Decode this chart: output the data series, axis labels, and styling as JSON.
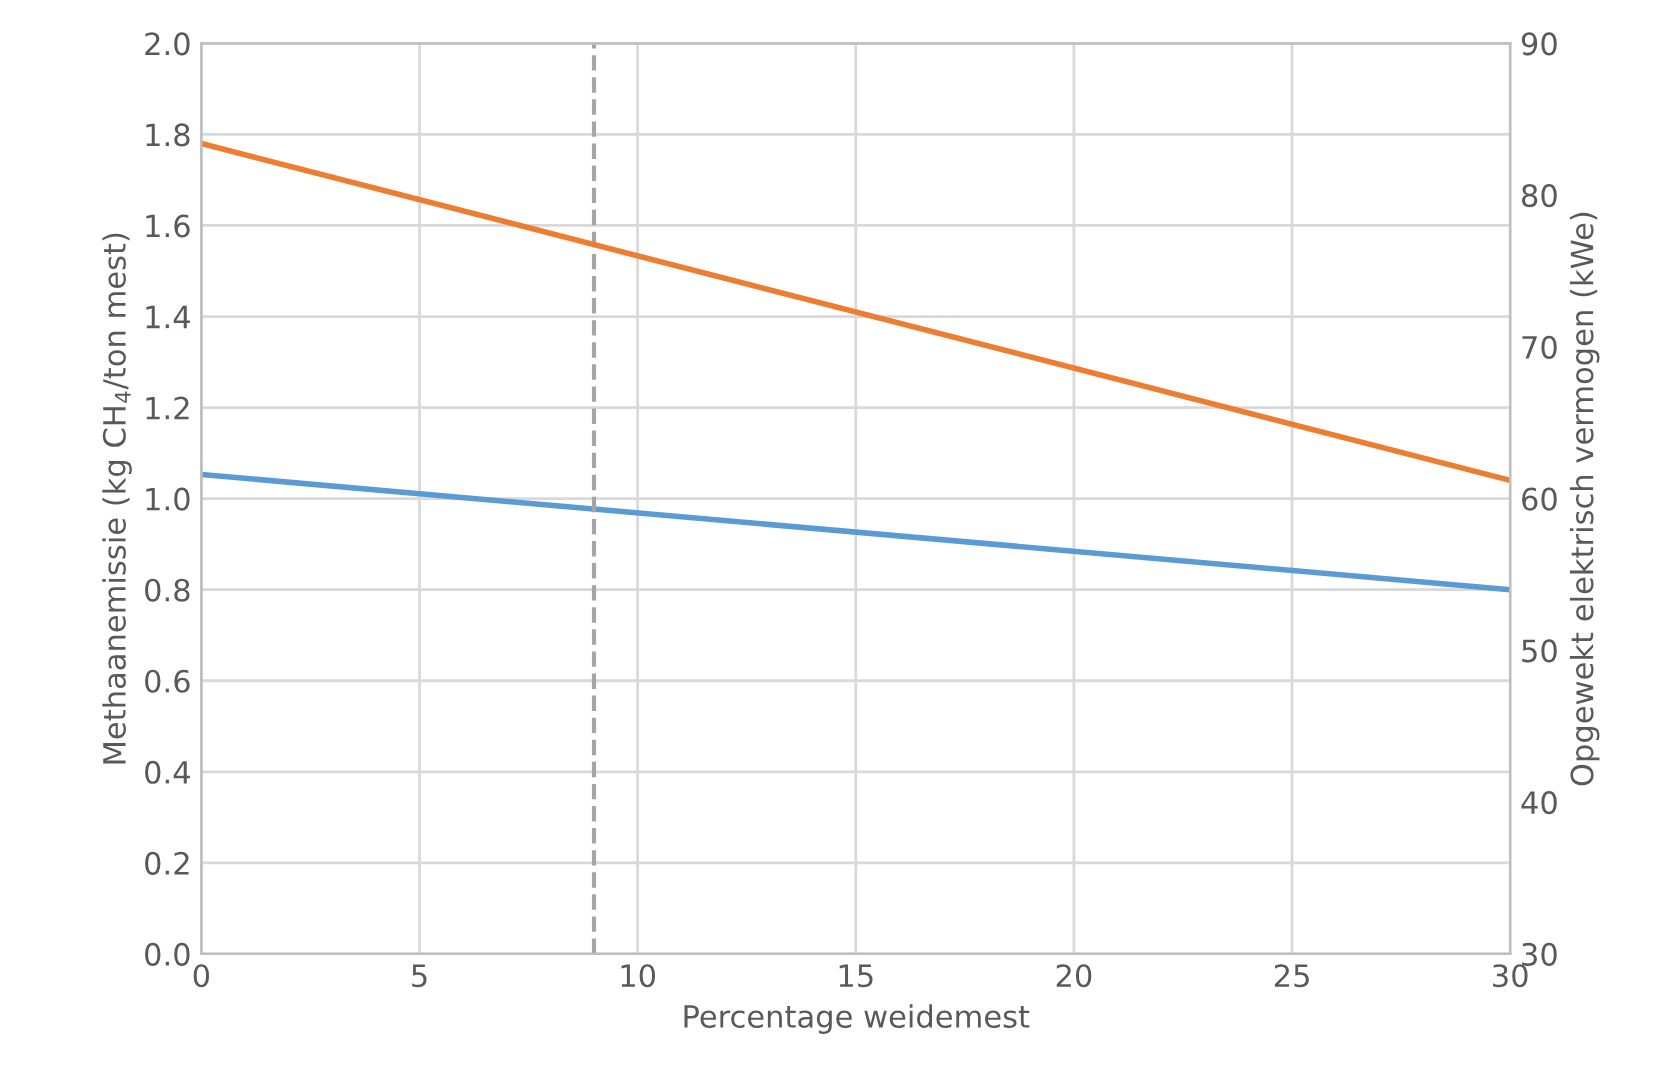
{
  "chart_data": {
    "type": "line",
    "xlabel": "Percentage weidemest",
    "ylabel": "Methaanemissie (kg CH$_{4}$/ton mest)",
    "y2label": "Opgewekt elektrisch vermogen (kWe)",
    "x": [
      0,
      30
    ],
    "series": [
      {
        "color": "#5b9bd5",
        "values": [
          1.053,
          0.8
        ]
      },
      {
        "color": "#ed7d31",
        "values": [
          83.4,
          61.2
        ],
        "axis": "y2"
      }
    ],
    "xlim": [
      0,
      30
    ],
    "xticks": [
      0,
      5,
      10,
      15,
      20,
      25,
      30
    ],
    "ylim": [
      0,
      2.0
    ],
    "yticks": [
      {
        "value": 0,
        "label": "0.0"
      },
      {
        "value": 0.2,
        "label": "0.2"
      },
      {
        "value": 0.4,
        "label": "0.4"
      },
      {
        "value": 0.6,
        "label": "0.6"
      },
      {
        "value": 0.8,
        "label": "0.8"
      },
      {
        "value": 1.0,
        "label": "1.0"
      },
      {
        "value": 1.2,
        "label": "1.2"
      },
      {
        "value": 1.4,
        "label": "1.4"
      },
      {
        "value": 1.6,
        "label": "1.6"
      },
      {
        "value": 1.8,
        "label": "1.8"
      },
      {
        "value": 2.0,
        "label": "2.0"
      }
    ],
    "y2lim": [
      30,
      90
    ],
    "y2ticks": [
      30,
      40,
      50,
      60,
      70,
      80,
      90
    ],
    "ref_lines": [
      {
        "axis": "x",
        "value": 9,
        "color": "#a5a5a5",
        "line_style": "dashed"
      }
    ],
    "grid": true,
    "legend": false,
    "marker": "none",
    "line_style": "solid"
  }
}
